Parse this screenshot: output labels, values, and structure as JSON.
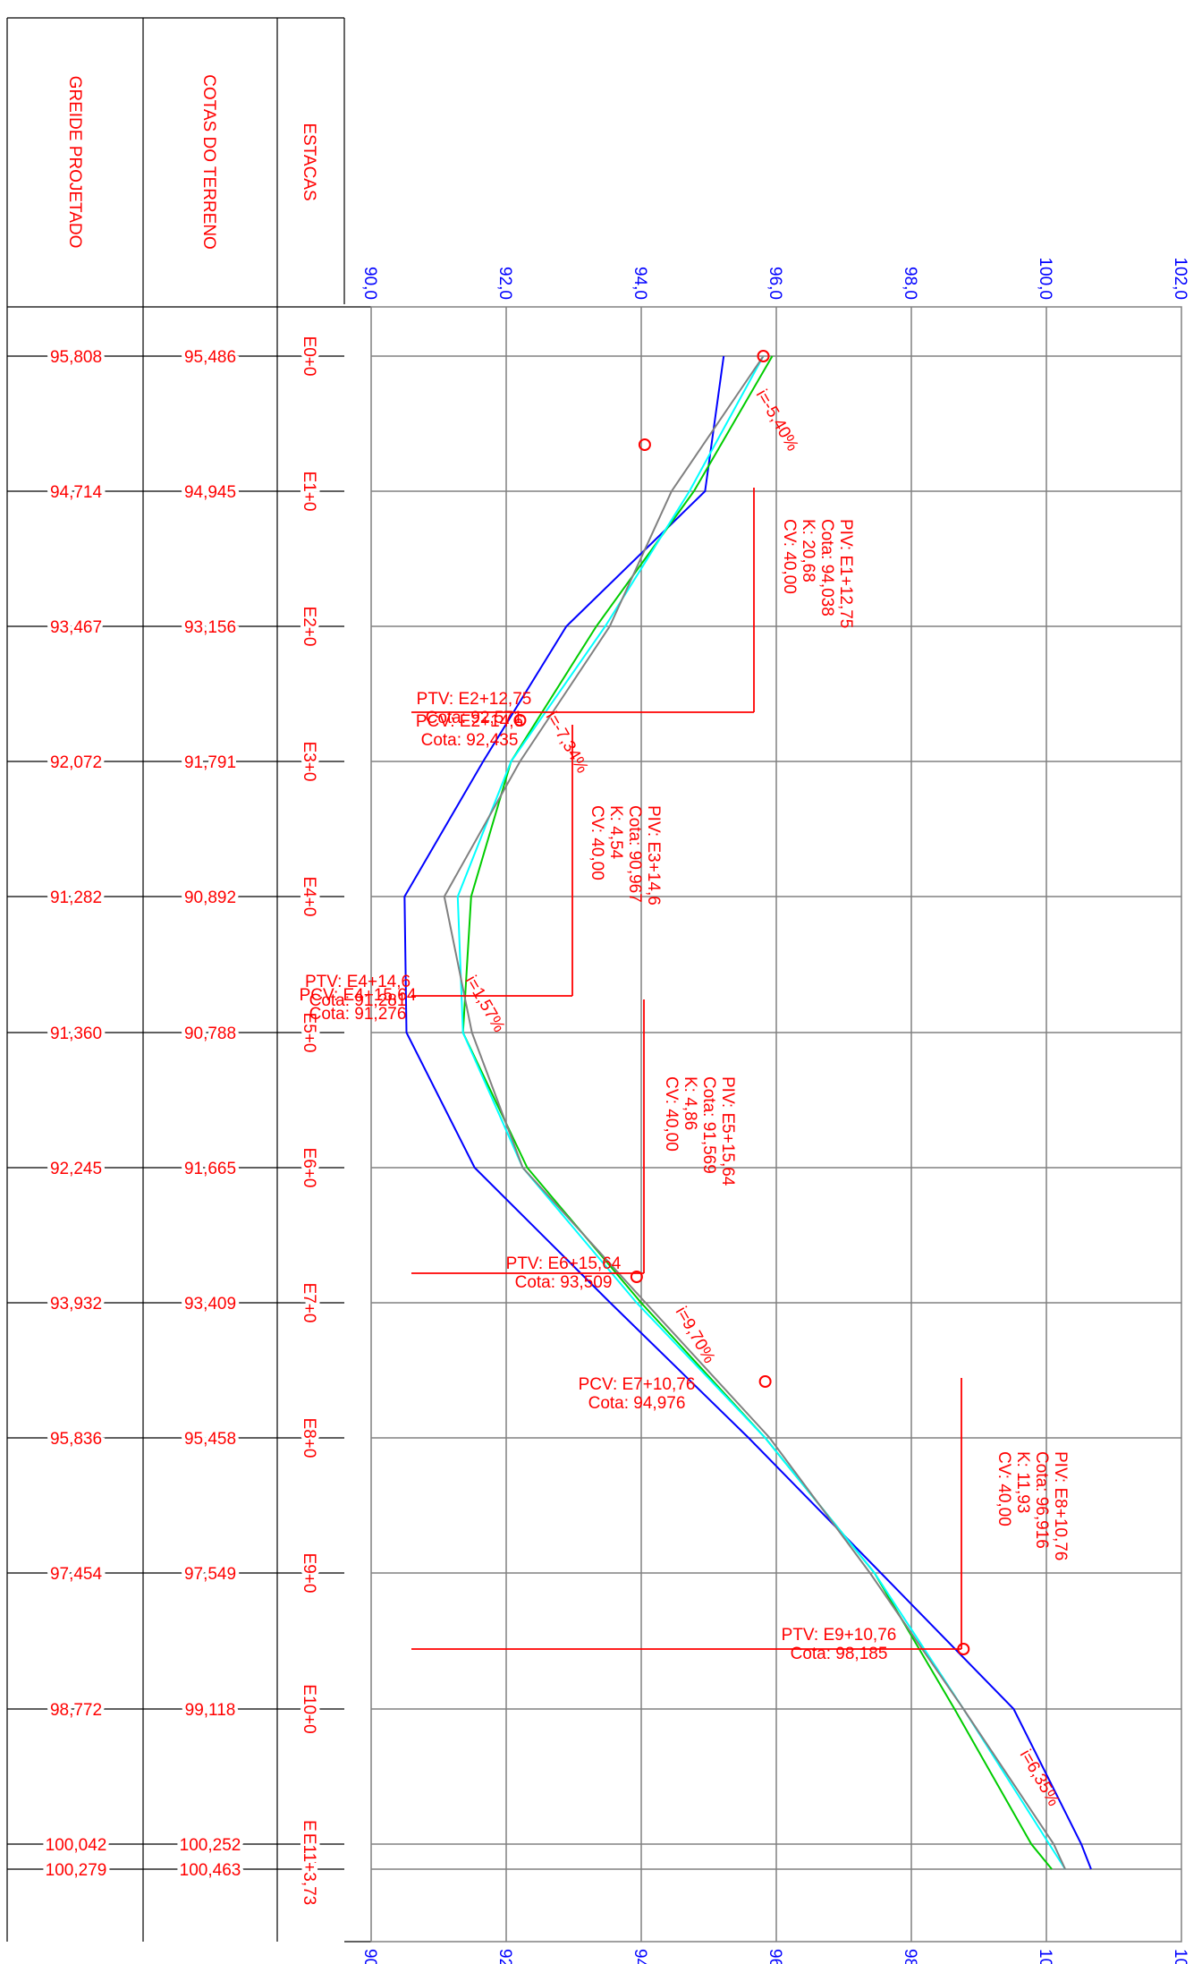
{
  "headers": {
    "col1": "GREIDE PROJETADO",
    "col2": "COTAS DO TERRENO",
    "col3": "ESTACAS"
  },
  "elevation_scale": [
    "90,0",
    "92,0",
    "94,0",
    "96,0",
    "98,0",
    "100,0",
    "102,0"
  ],
  "stations": [
    {
      "label": "E0+0",
      "greide": "95,808",
      "terreno": "95,486"
    },
    {
      "label": "E1+0",
      "greide": "94,714",
      "terreno": "94,945"
    },
    {
      "label": "E2+0",
      "greide": "93,467",
      "terreno": "93,156"
    },
    {
      "label": "E3+0",
      "greide": "92,072",
      "terreno": "91,791"
    },
    {
      "label": "E4+0",
      "greide": "91,282",
      "terreno": "90,892"
    },
    {
      "label": "E5+0",
      "greide": "91,360",
      "terreno": "90,788"
    },
    {
      "label": "E6+0",
      "greide": "92,245",
      "terreno": "91,665"
    },
    {
      "label": "E7+0",
      "greide": "93,932",
      "terreno": "93,409"
    },
    {
      "label": "E8+0",
      "greide": "95,836",
      "terreno": "95,458"
    },
    {
      "label": "E9+0",
      "greide": "97,454",
      "terreno": "97,549"
    },
    {
      "label": "E10+0",
      "greide": "98,772",
      "terreno": "99,118"
    },
    {
      "label": "E11+0",
      "greide": "100,042",
      "terreno": "100,252"
    },
    {
      "label": "E11+3,73",
      "greide": "100,279",
      "terreno": "100,463"
    }
  ],
  "piv_blocks": [
    {
      "lines": [
        "PIV: E1+12,75",
        "Cota: 94,038",
        "K: 20,68",
        "CV: 40,00"
      ]
    },
    {
      "lines": [
        "PIV: E3+14,6",
        "Cota: 90,967",
        "K: 4,54",
        "CV: 40,00"
      ]
    },
    {
      "lines": [
        "PIV: E5+15,64",
        "Cota: 91,569",
        "K: 4,86",
        "CV: 40,00"
      ]
    },
    {
      "lines": [
        "PIV: E8+10,76",
        "Cota: 96,916",
        "K: 11,93",
        "CV: 40,00"
      ]
    }
  ],
  "point_labels": [
    {
      "lines": [
        "PTV: E2+12,75",
        "Cota: 92,571"
      ]
    },
    {
      "lines": [
        "PCV: E2+14,6",
        "Cota: 92,435"
      ]
    },
    {
      "lines": [
        "PTV: E4+14,6",
        "Cota: 91,281"
      ]
    },
    {
      "lines": [
        "PCV: E4+15,64",
        "Cota: 91,276"
      ]
    },
    {
      "lines": [
        "PTV: E6+15,64",
        "Cota: 93,509"
      ]
    },
    {
      "lines": [
        "PCV: E7+10,76",
        "Cota: 94,976"
      ]
    },
    {
      "lines": [
        "PTV: E9+10,76",
        "Cota: 98,185"
      ]
    }
  ],
  "grades": [
    "i=-5,40%",
    "i=-7,34%",
    "i=1,57%",
    "i=9,70%",
    "i=6,35%"
  ],
  "colors": {
    "grid": "#808080",
    "terrain": "#0000ff",
    "grade_tangents": "#808080",
    "profile_curve": "#00ffff",
    "profile_alt": "#00cc00",
    "annotation": "#ff0000",
    "marker": "#ffff00"
  }
}
